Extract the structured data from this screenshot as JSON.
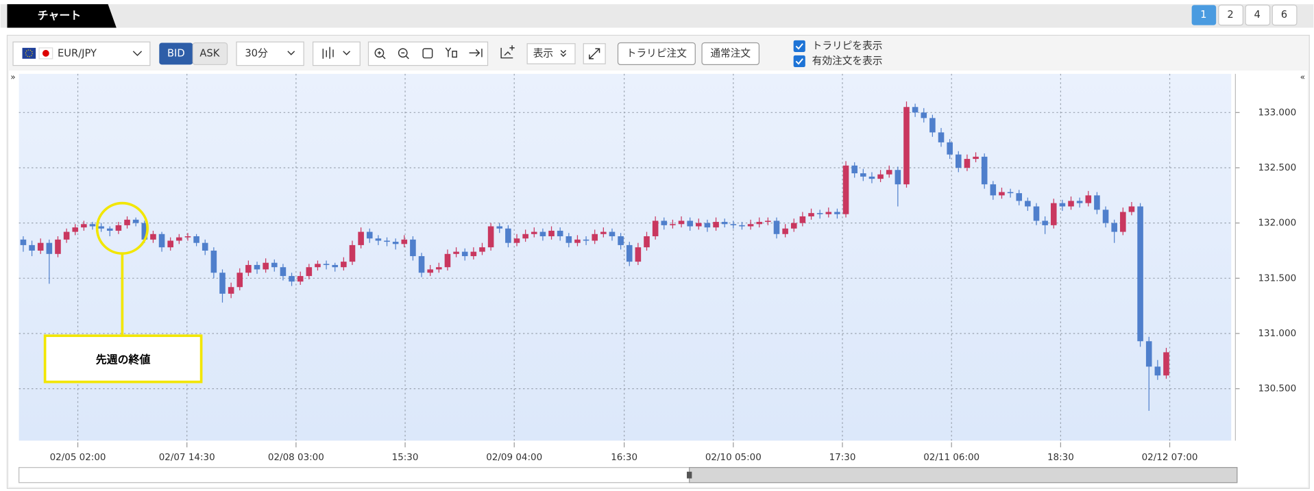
{
  "tabs": {
    "title": "チャート",
    "pages": [
      "1",
      "2",
      "4",
      "6"
    ]
  },
  "toolbar": {
    "symbol": "EUR/JPY",
    "bid": "BID",
    "ask": "ASK",
    "interval": "30分",
    "display": "表示",
    "traripi_order": "トラリピ注文",
    "normal_order": "通常注文",
    "checks": [
      "トラリピを表示",
      "有効注文を表示"
    ]
  },
  "chart": {
    "type": "candlestick",
    "up_color": "#c9375f",
    "down_color": "#4f7fcc",
    "grid": true,
    "ylim": [
      130.03,
      133.35
    ],
    "yticks": [
      {
        "value": 130.5,
        "label": "130.500"
      },
      {
        "value": 131,
        "label": "131.000"
      },
      {
        "value": 131.5,
        "label": "131.500"
      },
      {
        "value": 132,
        "label": "132.000"
      },
      {
        "value": 132.5,
        "label": "132.500"
      },
      {
        "value": 133,
        "label": "133.000"
      }
    ],
    "xlim": [
      0,
      140
    ],
    "xticks": [
      {
        "value": 6.8,
        "label": "02/05 02:00"
      },
      {
        "value": 19.4,
        "label": "02/07 14:30"
      },
      {
        "value": 32,
        "label": "02/08 03:00"
      },
      {
        "value": 44.6,
        "label": "15:30"
      },
      {
        "value": 57.2,
        "label": "02/09 04:00"
      },
      {
        "value": 69.9,
        "label": "16:30"
      },
      {
        "value": 82.5,
        "label": "02/10 05:00"
      },
      {
        "value": 95.1,
        "label": "17:30"
      },
      {
        "value": 107.7,
        "label": "02/11 06:00"
      },
      {
        "value": 120.3,
        "label": "18:30"
      },
      {
        "value": 132.9,
        "label": "02/12 07:00"
      }
    ],
    "candles": [
      [
        131.85,
        131.88,
        131.74,
        131.8
      ],
      [
        131.8,
        131.84,
        131.7,
        131.75
      ],
      [
        131.75,
        131.86,
        131.72,
        131.82
      ],
      [
        131.82,
        131.85,
        131.45,
        131.72
      ],
      [
        131.72,
        131.88,
        131.69,
        131.85
      ],
      [
        131.85,
        131.95,
        131.82,
        131.92
      ],
      [
        131.92,
        131.99,
        131.89,
        131.96
      ],
      [
        131.96,
        132.02,
        131.93,
        131.99
      ],
      [
        131.99,
        132.01,
        131.94,
        131.97
      ],
      [
        131.97,
        132.0,
        131.92,
        131.95
      ],
      [
        131.95,
        131.97,
        131.88,
        131.93
      ],
      [
        131.93,
        132.01,
        131.9,
        131.98
      ],
      [
        131.98,
        132.06,
        131.95,
        132.03
      ],
      [
        132.03,
        132.05,
        131.97,
        132.0
      ],
      [
        132.0,
        132.02,
        131.82,
        131.85
      ],
      [
        131.85,
        131.93,
        131.82,
        131.9
      ],
      [
        131.9,
        131.92,
        131.74,
        131.78
      ],
      [
        131.78,
        131.87,
        131.75,
        131.84
      ],
      [
        131.84,
        131.9,
        131.81,
        131.87
      ],
      [
        131.87,
        131.91,
        131.84,
        131.88
      ],
      [
        131.88,
        131.9,
        131.79,
        131.82
      ],
      [
        131.82,
        131.85,
        131.71,
        131.75
      ],
      [
        131.75,
        131.78,
        131.5,
        131.55
      ],
      [
        131.55,
        131.58,
        131.28,
        131.36
      ],
      [
        131.36,
        131.46,
        131.32,
        131.42
      ],
      [
        131.42,
        131.59,
        131.39,
        131.55
      ],
      [
        131.55,
        131.66,
        131.52,
        131.62
      ],
      [
        131.62,
        131.65,
        131.54,
        131.58
      ],
      [
        131.58,
        131.68,
        131.55,
        131.64
      ],
      [
        131.64,
        131.67,
        131.56,
        131.6
      ],
      [
        131.6,
        131.63,
        131.48,
        131.52
      ],
      [
        131.52,
        131.55,
        131.43,
        131.47
      ],
      [
        131.47,
        131.56,
        131.44,
        131.52
      ],
      [
        131.52,
        131.63,
        131.49,
        131.6
      ],
      [
        131.6,
        131.66,
        131.57,
        131.63
      ],
      [
        131.63,
        131.66,
        131.58,
        131.62
      ],
      [
        131.62,
        131.64,
        131.56,
        131.6
      ],
      [
        131.6,
        131.69,
        131.57,
        131.65
      ],
      [
        131.65,
        131.84,
        131.62,
        131.8
      ],
      [
        131.8,
        131.96,
        131.77,
        131.92
      ],
      [
        131.92,
        131.95,
        131.82,
        131.86
      ],
      [
        131.86,
        131.89,
        131.8,
        131.84
      ],
      [
        131.84,
        131.87,
        131.79,
        131.83
      ],
      [
        131.83,
        131.86,
        131.76,
        131.81
      ],
      [
        131.81,
        131.89,
        131.78,
        131.85
      ],
      [
        131.85,
        131.88,
        131.66,
        131.7
      ],
      [
        131.7,
        131.73,
        131.51,
        131.55
      ],
      [
        131.55,
        131.62,
        131.52,
        131.58
      ],
      [
        131.58,
        131.64,
        131.55,
        131.6
      ],
      [
        131.6,
        131.76,
        131.57,
        131.72
      ],
      [
        131.72,
        131.78,
        131.69,
        131.74
      ],
      [
        131.74,
        131.77,
        131.66,
        131.7
      ],
      [
        131.7,
        131.78,
        131.67,
        131.74
      ],
      [
        131.74,
        131.82,
        131.71,
        131.78
      ],
      [
        131.78,
        132.0,
        131.75,
        131.97
      ],
      [
        131.97,
        132.0,
        131.91,
        131.95
      ],
      [
        131.95,
        131.98,
        131.78,
        131.82
      ],
      [
        131.82,
        131.9,
        131.79,
        131.86
      ],
      [
        131.86,
        131.94,
        131.83,
        131.9
      ],
      [
        131.9,
        131.96,
        131.87,
        131.92
      ],
      [
        131.92,
        131.95,
        131.84,
        131.88
      ],
      [
        131.88,
        131.97,
        131.85,
        131.93
      ],
      [
        131.93,
        131.96,
        131.84,
        131.88
      ],
      [
        131.88,
        131.91,
        131.78,
        131.82
      ],
      [
        131.82,
        131.89,
        131.79,
        131.85
      ],
      [
        131.85,
        131.88,
        131.8,
        131.84
      ],
      [
        131.84,
        131.94,
        131.81,
        131.9
      ],
      [
        131.9,
        131.96,
        131.87,
        131.92
      ],
      [
        131.92,
        131.95,
        131.84,
        131.88
      ],
      [
        131.88,
        131.91,
        131.76,
        131.8
      ],
      [
        131.8,
        131.83,
        131.61,
        131.65
      ],
      [
        131.65,
        131.82,
        131.62,
        131.78
      ],
      [
        131.78,
        131.92,
        131.75,
        131.88
      ],
      [
        131.88,
        132.06,
        131.85,
        132.02
      ],
      [
        132.02,
        132.05,
        131.94,
        131.98
      ],
      [
        131.98,
        132.03,
        131.95,
        131.99
      ],
      [
        131.99,
        132.06,
        131.96,
        132.02
      ],
      [
        132.02,
        132.05,
        131.93,
        131.97
      ],
      [
        131.97,
        132.04,
        131.94,
        132.0
      ],
      [
        132.0,
        132.03,
        131.92,
        131.96
      ],
      [
        131.96,
        132.05,
        131.93,
        132.01
      ],
      [
        132.01,
        132.04,
        131.96,
        131.99
      ],
      [
        131.99,
        132.02,
        131.95,
        131.98
      ],
      [
        131.98,
        132.01,
        131.94,
        131.97
      ],
      [
        131.97,
        132.03,
        131.94,
        131.99
      ],
      [
        131.99,
        132.05,
        131.96,
        132.01
      ],
      [
        132.01,
        132.05,
        131.98,
        132.02
      ],
      [
        132.02,
        132.05,
        131.86,
        131.9
      ],
      [
        131.9,
        131.99,
        131.87,
        131.95
      ],
      [
        131.95,
        132.04,
        131.92,
        132.0
      ],
      [
        132.0,
        132.1,
        131.97,
        132.06
      ],
      [
        132.06,
        132.13,
        132.03,
        132.09
      ],
      [
        132.09,
        132.12,
        132.04,
        132.08
      ],
      [
        132.08,
        132.14,
        132.05,
        132.1
      ],
      [
        132.1,
        132.13,
        132.04,
        132.08
      ],
      [
        132.08,
        132.56,
        132.05,
        132.52
      ],
      [
        132.52,
        132.55,
        132.41,
        132.45
      ],
      [
        132.45,
        132.49,
        132.38,
        132.42
      ],
      [
        132.42,
        132.46,
        132.36,
        132.4
      ],
      [
        132.4,
        132.48,
        132.37,
        132.44
      ],
      [
        132.44,
        132.52,
        132.41,
        132.48
      ],
      [
        132.48,
        132.51,
        132.15,
        132.35
      ],
      [
        132.35,
        133.1,
        132.32,
        133.05
      ],
      [
        133.05,
        133.08,
        132.96,
        133.0
      ],
      [
        133.0,
        133.04,
        132.91,
        132.95
      ],
      [
        132.95,
        132.98,
        132.78,
        132.82
      ],
      [
        132.82,
        132.86,
        132.69,
        132.73
      ],
      [
        132.73,
        132.76,
        132.58,
        132.62
      ],
      [
        132.62,
        132.65,
        132.46,
        132.5
      ],
      [
        132.5,
        132.62,
        132.47,
        132.58
      ],
      [
        132.58,
        132.64,
        132.55,
        132.6
      ],
      [
        132.6,
        132.63,
        132.31,
        132.35
      ],
      [
        132.35,
        132.38,
        132.21,
        132.25
      ],
      [
        132.25,
        132.32,
        132.22,
        132.28
      ],
      [
        132.28,
        132.31,
        132.23,
        132.27
      ],
      [
        132.27,
        132.3,
        132.16,
        132.2
      ],
      [
        132.2,
        132.23,
        132.11,
        132.15
      ],
      [
        132.15,
        132.18,
        131.98,
        132.02
      ],
      [
        132.02,
        132.06,
        131.9,
        131.98
      ],
      [
        131.98,
        132.22,
        131.95,
        132.18
      ],
      [
        132.18,
        132.21,
        132.11,
        132.15
      ],
      [
        132.15,
        132.24,
        132.12,
        132.2
      ],
      [
        132.2,
        132.23,
        132.14,
        132.18
      ],
      [
        132.18,
        132.29,
        132.15,
        132.25
      ],
      [
        132.25,
        132.28,
        132.08,
        132.12
      ],
      [
        132.12,
        132.15,
        131.96,
        132.0
      ],
      [
        132.0,
        132.03,
        131.82,
        131.92
      ],
      [
        131.92,
        132.14,
        131.89,
        132.1
      ],
      [
        132.1,
        132.19,
        132.07,
        132.15
      ],
      [
        132.15,
        132.18,
        130.88,
        130.93
      ],
      [
        130.93,
        130.97,
        130.3,
        130.7
      ],
      [
        130.7,
        130.76,
        130.58,
        130.62
      ],
      [
        130.62,
        130.87,
        130.59,
        130.83
      ]
    ]
  },
  "annotation": {
    "label": "先週の終値"
  }
}
